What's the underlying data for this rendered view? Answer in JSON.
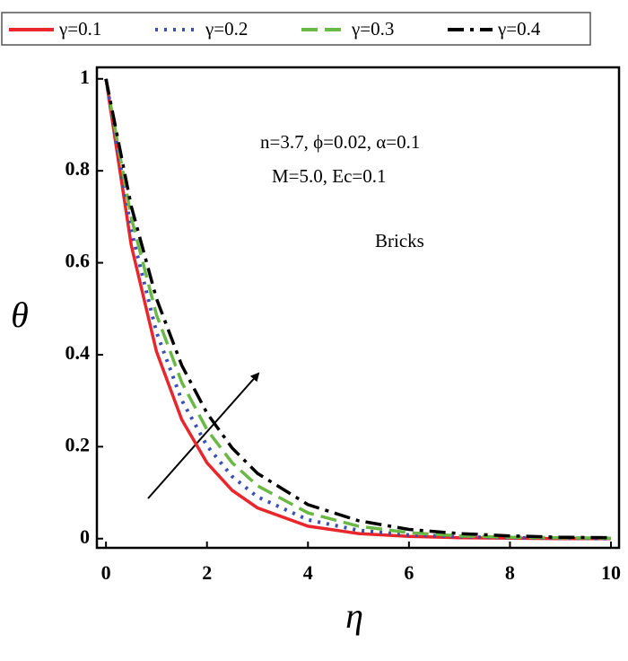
{
  "chart_data": {
    "type": "line",
    "x": [
      0,
      0.5,
      1,
      1.5,
      2,
      2.5,
      3,
      4,
      5,
      6,
      7,
      8,
      9,
      10
    ],
    "series": [
      {
        "name": "γ=0.1",
        "color": "#e8262b",
        "dash": "solid",
        "values": [
          1,
          0.638,
          0.407,
          0.259,
          0.165,
          0.105,
          0.067,
          0.027,
          0.011,
          0.005,
          0.002,
          0.001,
          0,
          0
        ]
      },
      {
        "name": "γ=0.2",
        "color": "#3a4fb5",
        "dash": "dot",
        "values": [
          1,
          0.67,
          0.449,
          0.301,
          0.202,
          0.135,
          0.091,
          0.041,
          0.018,
          0.008,
          0.004,
          0.002,
          0.001,
          0
        ]
      },
      {
        "name": "γ=0.3",
        "color": "#6ab845",
        "dash": "dash",
        "values": [
          1,
          0.698,
          0.487,
          0.34,
          0.237,
          0.165,
          0.115,
          0.056,
          0.027,
          0.013,
          0.006,
          0.003,
          0.002,
          0.001
        ]
      },
      {
        "name": "γ=0.4",
        "color": "#000000",
        "dash": "dashdot",
        "values": [
          1,
          0.723,
          0.522,
          0.377,
          0.273,
          0.197,
          0.142,
          0.074,
          0.039,
          0.02,
          0.011,
          0.006,
          0.003,
          0.002
        ]
      }
    ],
    "xlabel": "η",
    "ylabel": "θ",
    "annotations": [
      "n=3.7, ϕ=0.02, α=0.1",
      "M=5.0, Ec=0.1",
      "Bricks"
    ],
    "xlim": [
      -0.18,
      10.16
    ],
    "ylim": [
      -0.02,
      1.025
    ],
    "xticks": [
      0,
      2,
      4,
      6,
      8,
      10
    ],
    "yticks": [
      0,
      0.2,
      0.4,
      0.6,
      0.8,
      1
    ],
    "legend": "top",
    "grid": false
  }
}
